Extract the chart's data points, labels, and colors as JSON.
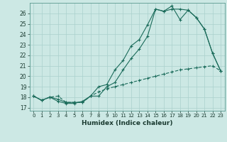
{
  "background_color": "#cce8e4",
  "grid_color": "#aad0cc",
  "line_color": "#1a6b5a",
  "xlabel": "Humidex (Indice chaleur)",
  "ylabel_ticks": [
    17,
    18,
    19,
    20,
    21,
    22,
    23,
    24,
    25,
    26
  ],
  "xticks": [
    0,
    1,
    2,
    3,
    4,
    5,
    6,
    7,
    8,
    9,
    10,
    11,
    12,
    13,
    14,
    15,
    16,
    17,
    18,
    19,
    20,
    21,
    22,
    23
  ],
  "xlim": [
    -0.5,
    23.5
  ],
  "ylim": [
    16.7,
    27.0
  ],
  "series1_x": [
    0,
    1,
    2,
    3,
    4,
    5,
    6,
    7,
    8,
    9,
    10,
    11,
    12,
    13,
    14,
    15,
    16,
    17,
    18,
    19,
    20,
    21,
    22,
    23
  ],
  "series1_y": [
    18.1,
    17.7,
    18.0,
    17.6,
    17.4,
    17.4,
    17.6,
    18.1,
    19.0,
    19.2,
    20.6,
    21.5,
    22.9,
    23.5,
    24.9,
    26.4,
    26.2,
    26.4,
    26.4,
    26.3,
    25.6,
    24.5,
    22.2,
    20.5
  ],
  "series2_x": [
    0,
    1,
    2,
    3,
    4,
    5,
    6,
    7,
    8,
    9,
    10,
    11,
    12,
    13,
    14,
    15,
    16,
    17,
    18,
    19,
    20,
    21,
    22,
    23
  ],
  "series2_y": [
    18.1,
    17.7,
    18.0,
    17.8,
    17.5,
    17.5,
    17.5,
    18.1,
    18.1,
    19.0,
    19.4,
    20.6,
    21.7,
    22.6,
    23.8,
    26.4,
    26.2,
    26.7,
    25.4,
    26.3,
    25.6,
    24.5,
    22.2,
    20.5
  ],
  "series3_x": [
    0,
    1,
    2,
    3,
    4,
    5,
    6,
    7,
    8,
    9,
    10,
    11,
    12,
    13,
    14,
    15,
    16,
    17,
    18,
    19,
    20,
    21,
    22,
    23
  ],
  "series3_y": [
    18.1,
    17.7,
    18.0,
    18.1,
    17.5,
    17.5,
    17.5,
    18.1,
    18.5,
    18.8,
    19.0,
    19.2,
    19.4,
    19.6,
    19.8,
    20.0,
    20.2,
    20.4,
    20.6,
    20.7,
    20.8,
    20.9,
    21.0,
    20.5
  ]
}
